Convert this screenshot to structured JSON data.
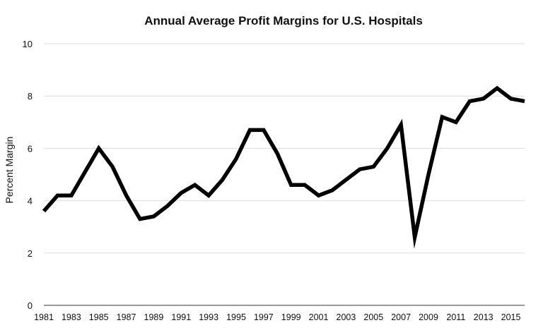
{
  "chart_data": {
    "type": "line",
    "title": "Annual Average Profit Margins for U.S. Hospitals",
    "xlabel": "",
    "ylabel": "Percent Margin",
    "ylim": [
      0,
      10
    ],
    "xlim": [
      1981,
      2016
    ],
    "yticks": [
      0,
      2,
      4,
      6,
      8,
      10
    ],
    "xticks": [
      1981,
      1983,
      1985,
      1987,
      1989,
      1991,
      1993,
      1995,
      1997,
      1999,
      2001,
      2003,
      2005,
      2007,
      2009,
      2011,
      2013,
      2015
    ],
    "grid": true,
    "line_color": "#000000",
    "grid_color": "#dddddd",
    "x": [
      1981,
      1982,
      1983,
      1984,
      1985,
      1986,
      1987,
      1988,
      1989,
      1990,
      1991,
      1992,
      1993,
      1994,
      1995,
      1996,
      1997,
      1998,
      1999,
      2000,
      2001,
      2002,
      2003,
      2004,
      2005,
      2006,
      2007,
      2008,
      2009,
      2010,
      2011,
      2012,
      2013,
      2014,
      2015,
      2016
    ],
    "values": [
      3.6,
      4.2,
      4.2,
      5.1,
      6.0,
      5.3,
      4.2,
      3.3,
      3.4,
      3.8,
      4.3,
      4.6,
      4.2,
      4.8,
      5.6,
      6.7,
      6.7,
      5.8,
      4.6,
      4.6,
      4.2,
      4.4,
      4.8,
      5.2,
      5.3,
      6.0,
      6.9,
      2.6,
      5.0,
      7.2,
      7.0,
      7.8,
      7.9,
      8.3,
      7.9,
      7.8
    ]
  }
}
